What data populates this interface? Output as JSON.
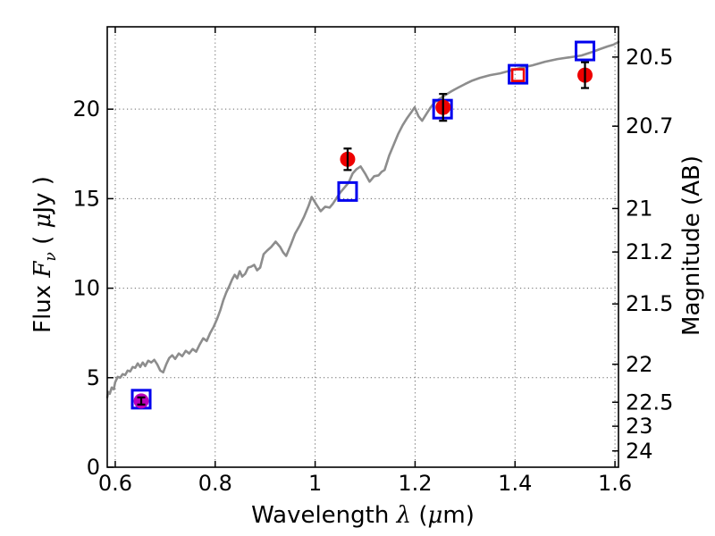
{
  "figure": {
    "background": "#ffffff"
  },
  "chart_data": {
    "type": "line",
    "title": "",
    "xlabel_plain": "Wavelength λ (μm)",
    "xlabel_segments": [
      {
        "t": "Wavelength  ",
        "math": false
      },
      {
        "t": "λ",
        "math": true
      },
      {
        "t": " (",
        "math": false
      },
      {
        "t": "μ",
        "math": true
      },
      {
        "t": "m)",
        "math": false
      }
    ],
    "ylabel_left_plain": "Flux Fν ( μJy )",
    "ylabel_left_segments": [
      {
        "t": "Flux  ",
        "math": false
      },
      {
        "t": "F",
        "math": true
      },
      {
        "t": "ν",
        "math": true,
        "sub": true
      },
      {
        "t": "  ( ",
        "math": false
      },
      {
        "t": "μ",
        "math": true
      },
      {
        "t": "Jy )",
        "math": false
      }
    ],
    "ylabel_right": "Magnitude (AB)",
    "xlim": [
      0.584,
      1.607
    ],
    "ylim": [
      0,
      24.6
    ],
    "grid": {
      "on": true,
      "style": "dotted",
      "x_values": [
        0.6,
        0.8,
        1.0,
        1.2,
        1.4,
        1.6
      ],
      "y_values": [
        0,
        5,
        10,
        15,
        20
      ]
    },
    "x_ticks": {
      "values": [
        0.6,
        0.8,
        1.0,
        1.2,
        1.4,
        1.6
      ],
      "labels": [
        "0.6",
        "0.8",
        "1",
        "1.2",
        "1.4",
        "1.6"
      ]
    },
    "y_ticks_left": {
      "values": [
        0,
        5,
        10,
        15,
        20
      ],
      "labels": [
        "0",
        "5",
        "10",
        "15",
        "20"
      ]
    },
    "y_ticks_right": {
      "mag_labels": [
        "20.5",
        "20.7",
        "21",
        "21.2",
        "21.5",
        "22",
        "22.5",
        "23",
        "24"
      ],
      "flux_positions": [
        22.91,
        19.05,
        14.45,
        12.02,
        9.12,
        5.75,
        3.63,
        2.29,
        0.91
      ]
    },
    "style": {
      "spectrum_color": "#8d8d8d",
      "model_color": "#0000ee",
      "observed_color": "#ee0000",
      "observed_first_color": "#bb00bb",
      "errorbar_color": "#000000",
      "frame_color": "#000000",
      "grid_color": "#555555"
    },
    "series": {
      "spectrum": {
        "name": "model spectrum (gray line)",
        "points": [
          [
            0.584,
            3.9
          ],
          [
            0.586,
            4.2
          ],
          [
            0.589,
            4.1
          ],
          [
            0.593,
            4.45
          ],
          [
            0.597,
            4.35
          ],
          [
            0.6,
            4.75
          ],
          [
            0.605,
            5.05
          ],
          [
            0.61,
            5.0
          ],
          [
            0.615,
            5.2
          ],
          [
            0.62,
            5.15
          ],
          [
            0.625,
            5.4
          ],
          [
            0.63,
            5.35
          ],
          [
            0.635,
            5.6
          ],
          [
            0.64,
            5.55
          ],
          [
            0.645,
            5.8
          ],
          [
            0.65,
            5.6
          ],
          [
            0.655,
            5.85
          ],
          [
            0.66,
            5.65
          ],
          [
            0.666,
            5.95
          ],
          [
            0.672,
            5.85
          ],
          [
            0.678,
            6.0
          ],
          [
            0.684,
            5.75
          ],
          [
            0.69,
            5.4
          ],
          [
            0.696,
            5.3
          ],
          [
            0.702,
            5.75
          ],
          [
            0.708,
            6.1
          ],
          [
            0.714,
            6.25
          ],
          [
            0.72,
            6.05
          ],
          [
            0.727,
            6.35
          ],
          [
            0.734,
            6.2
          ],
          [
            0.741,
            6.5
          ],
          [
            0.748,
            6.35
          ],
          [
            0.755,
            6.6
          ],
          [
            0.762,
            6.45
          ],
          [
            0.769,
            6.85
          ],
          [
            0.776,
            7.2
          ],
          [
            0.783,
            7.05
          ],
          [
            0.79,
            7.5
          ],
          [
            0.797,
            7.85
          ],
          [
            0.804,
            8.3
          ],
          [
            0.81,
            8.75
          ],
          [
            0.816,
            9.3
          ],
          [
            0.822,
            9.75
          ],
          [
            0.828,
            10.1
          ],
          [
            0.834,
            10.5
          ],
          [
            0.839,
            10.75
          ],
          [
            0.844,
            10.55
          ],
          [
            0.849,
            10.95
          ],
          [
            0.854,
            10.65
          ],
          [
            0.86,
            10.8
          ],
          [
            0.866,
            11.15
          ],
          [
            0.872,
            11.2
          ],
          [
            0.878,
            11.3
          ],
          [
            0.884,
            11.0
          ],
          [
            0.89,
            11.15
          ],
          [
            0.897,
            11.9
          ],
          [
            0.904,
            12.1
          ],
          [
            0.912,
            12.3
          ],
          [
            0.921,
            12.6
          ],
          [
            0.93,
            12.3
          ],
          [
            0.936,
            12.0
          ],
          [
            0.942,
            11.8
          ],
          [
            0.951,
            12.4
          ],
          [
            0.96,
            13.05
          ],
          [
            0.969,
            13.5
          ],
          [
            0.978,
            14.0
          ],
          [
            0.987,
            14.6
          ],
          [
            0.993,
            15.1
          ],
          [
            1.002,
            14.7
          ],
          [
            1.011,
            14.3
          ],
          [
            1.02,
            14.55
          ],
          [
            1.029,
            14.5
          ],
          [
            1.035,
            14.7
          ],
          [
            1.042,
            15.0
          ],
          [
            1.049,
            15.3
          ],
          [
            1.058,
            15.6
          ],
          [
            1.067,
            15.9
          ],
          [
            1.075,
            16.4
          ],
          [
            1.083,
            16.65
          ],
          [
            1.091,
            16.8
          ],
          [
            1.1,
            16.4
          ],
          [
            1.109,
            15.95
          ],
          [
            1.118,
            16.25
          ],
          [
            1.127,
            16.3
          ],
          [
            1.133,
            16.5
          ],
          [
            1.139,
            16.6
          ],
          [
            1.148,
            17.4
          ],
          [
            1.157,
            18.0
          ],
          [
            1.166,
            18.6
          ],
          [
            1.175,
            19.1
          ],
          [
            1.184,
            19.5
          ],
          [
            1.193,
            19.85
          ],
          [
            1.199,
            20.1
          ],
          [
            1.207,
            19.6
          ],
          [
            1.214,
            19.35
          ],
          [
            1.222,
            19.7
          ],
          [
            1.231,
            20.1
          ],
          [
            1.24,
            20.4
          ],
          [
            1.25,
            20.6
          ],
          [
            1.261,
            20.8
          ],
          [
            1.273,
            21.0
          ],
          [
            1.286,
            21.2
          ],
          [
            1.3,
            21.4
          ],
          [
            1.315,
            21.6
          ],
          [
            1.33,
            21.75
          ],
          [
            1.35,
            21.9
          ],
          [
            1.37,
            22.0
          ],
          [
            1.39,
            22.15
          ],
          [
            1.41,
            22.3
          ],
          [
            1.435,
            22.45
          ],
          [
            1.46,
            22.65
          ],
          [
            1.485,
            22.8
          ],
          [
            1.51,
            22.9
          ],
          [
            1.533,
            23.0
          ],
          [
            1.555,
            23.2
          ],
          [
            1.569,
            23.35
          ],
          [
            1.585,
            23.5
          ],
          [
            1.597,
            23.6
          ],
          [
            1.607,
            23.75
          ]
        ]
      },
      "model_photometry": {
        "name": "model photometry (blue open squares)",
        "marker": "open-square",
        "points": [
          [
            0.652,
            3.8
          ],
          [
            1.065,
            15.4
          ],
          [
            1.255,
            20.0
          ],
          [
            1.406,
            21.95
          ],
          [
            1.54,
            23.25
          ]
        ]
      },
      "observed_photometry": {
        "name": "observed photometry (filled circles with error bars)",
        "points": [
          {
            "x": 0.652,
            "y": 3.7,
            "yerr": 0.2,
            "marker": "circle",
            "color_key": "observed_first_color"
          },
          {
            "x": 1.065,
            "y": 17.2,
            "yerr": 0.6,
            "marker": "circle",
            "color_key": "observed_color"
          },
          {
            "x": 1.256,
            "y": 20.1,
            "yerr": 0.75,
            "marker": "circle",
            "color_key": "observed_color"
          },
          {
            "x": 1.406,
            "y": 21.9,
            "yerr": 0,
            "marker": "open-square",
            "color_key": "observed_color"
          },
          {
            "x": 1.54,
            "y": 21.9,
            "yerr": 0.72,
            "marker": "circle",
            "color_key": "observed_color"
          }
        ]
      }
    }
  }
}
